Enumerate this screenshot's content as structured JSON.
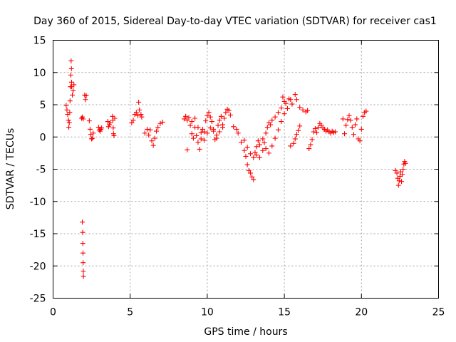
{
  "chart_data": {
    "type": "scatter",
    "title": "Day 360 of 2015, Sidereal Day-to-day VTEC variation (SDTVAR) for receiver cas1",
    "xlabel": "GPS time / hours",
    "ylabel": "SDTVAR / TECUs",
    "xlim": [
      0,
      25
    ],
    "ylim": [
      -25,
      15
    ],
    "xticks": [
      0,
      5,
      10,
      15,
      20,
      25
    ],
    "yticks": [
      -25,
      -20,
      -15,
      -10,
      -5,
      0,
      5,
      10,
      15
    ],
    "grid": true,
    "marker": "+",
    "color": "#ff0000",
    "segments": [
      {
        "t0": 0.85,
        "t1": 1.2,
        "pts": [
          [
            0.85,
            4.9
          ],
          [
            0.9,
            4.2
          ],
          [
            0.95,
            3.5
          ],
          [
            1.0,
            2.6
          ],
          [
            1.02,
            1.5
          ],
          [
            1.05,
            2.2
          ],
          [
            1.08,
            3.8
          ],
          [
            1.1,
            5.6
          ],
          [
            1.12,
            7.8
          ],
          [
            1.15,
            9.6
          ],
          [
            1.17,
            11.8
          ],
          [
            1.19,
            10.6
          ],
          [
            1.2,
            8.5
          ]
        ]
      },
      {
        "t0": 1.2,
        "t1": 1.35,
        "pts": [
          [
            1.2,
            7.8
          ],
          [
            1.25,
            6.5
          ],
          [
            1.3,
            7.2
          ],
          [
            1.35,
            8.1
          ]
        ]
      },
      {
        "t0": 1.85,
        "t1": 1.95,
        "pts": [
          [
            1.85,
            2.9
          ],
          [
            1.9,
            3.1
          ],
          [
            1.95,
            2.8
          ]
        ]
      },
      {
        "t0": 1.9,
        "t1": 2.0,
        "pts": [
          [
            1.9,
            -13.2
          ],
          [
            1.92,
            -14.8
          ],
          [
            1.93,
            -16.5
          ],
          [
            1.94,
            -18.0
          ],
          [
            1.95,
            -19.5
          ],
          [
            1.96,
            -20.8
          ],
          [
            1.97,
            -21.6
          ]
        ]
      },
      {
        "t0": 2.05,
        "t1": 2.15,
        "pts": [
          [
            2.05,
            6.5
          ],
          [
            2.1,
            5.8
          ],
          [
            2.15,
            6.4
          ]
        ]
      },
      {
        "t0": 2.35,
        "t1": 2.6,
        "pts": [
          [
            2.35,
            2.5
          ],
          [
            2.4,
            1.2
          ],
          [
            2.45,
            0.4
          ],
          [
            2.5,
            -0.3
          ],
          [
            2.55,
            -0.2
          ],
          [
            2.6,
            0.6
          ]
        ]
      },
      {
        "t0": 2.95,
        "t1": 3.15,
        "pts": [
          [
            2.95,
            1.5
          ],
          [
            3.0,
            1.1
          ],
          [
            3.05,
            0.9
          ],
          [
            3.1,
            1.2
          ],
          [
            3.15,
            1.4
          ]
        ]
      },
      {
        "t0": 3.55,
        "t1": 3.7,
        "pts": [
          [
            3.55,
            2.4
          ],
          [
            3.6,
            1.6
          ],
          [
            3.65,
            1.9
          ],
          [
            3.7,
            2.2
          ]
        ]
      },
      {
        "t0": 3.85,
        "t1": 4.0,
        "pts": [
          [
            3.85,
            3.2
          ],
          [
            3.88,
            2.6
          ],
          [
            3.9,
            1.4
          ],
          [
            3.92,
            0.5
          ],
          [
            3.95,
            0.2
          ],
          [
            4.0,
            2.9
          ]
        ]
      },
      {
        "t0": 5.1,
        "t1": 5.75,
        "pts": [
          [
            5.1,
            2.2
          ],
          [
            5.2,
            2.6
          ],
          [
            5.3,
            3.5
          ],
          [
            5.4,
            3.8
          ],
          [
            5.5,
            3.3
          ],
          [
            5.55,
            5.4
          ],
          [
            5.6,
            4.2
          ],
          [
            5.7,
            3.5
          ],
          [
            5.75,
            3.1
          ]
        ]
      },
      {
        "t0": 5.95,
        "t1": 7.1,
        "pts": [
          [
            5.95,
            0.6
          ],
          [
            6.1,
            1.2
          ],
          [
            6.2,
            0.3
          ],
          [
            6.3,
            1.1
          ],
          [
            6.4,
            -0.6
          ],
          [
            6.5,
            -1.3
          ],
          [
            6.6,
            -0.2
          ],
          [
            6.7,
            0.9
          ],
          [
            6.8,
            1.5
          ],
          [
            6.95,
            2.1
          ],
          [
            7.1,
            2.3
          ]
        ]
      },
      {
        "t0": 8.5,
        "t1": 8.8,
        "pts": [
          [
            8.5,
            2.8
          ],
          [
            8.6,
            3.2
          ],
          [
            8.7,
            2.6
          ],
          [
            8.8,
            3.0
          ]
        ]
      },
      {
        "t0": 8.7,
        "t1": 11.5,
        "pts": [
          [
            8.7,
            -2.0
          ],
          [
            8.9,
            1.8
          ],
          [
            9.0,
            0.5
          ],
          [
            9.1,
            -0.2
          ],
          [
            9.2,
            1.5
          ],
          [
            9.3,
            0.2
          ],
          [
            9.4,
            -0.8
          ],
          [
            9.5,
            -1.9
          ],
          [
            9.6,
            -0.3
          ],
          [
            9.7,
            1.2
          ],
          [
            9.8,
            0.8
          ],
          [
            9.9,
            2.5
          ],
          [
            10.0,
            3.3
          ],
          [
            10.1,
            3.8
          ],
          [
            10.2,
            3.1
          ],
          [
            10.3,
            2.4
          ],
          [
            10.4,
            1.2
          ],
          [
            10.5,
            -0.4
          ],
          [
            10.6,
            0.3
          ],
          [
            10.7,
            1.8
          ],
          [
            10.8,
            2.6
          ],
          [
            10.9,
            3.2
          ],
          [
            11.0,
            1.5
          ],
          [
            11.1,
            2.9
          ],
          [
            11.2,
            3.8
          ],
          [
            11.3,
            4.3
          ],
          [
            11.4,
            4.1
          ],
          [
            11.5,
            3.4
          ]
        ]
      },
      {
        "t0": 9.0,
        "t1": 11.0,
        "pts": [
          [
            9.0,
            2.4
          ],
          [
            9.2,
            2.9
          ],
          [
            9.4,
            1.5
          ],
          [
            9.6,
            0.7
          ],
          [
            9.8,
            -0.5
          ],
          [
            10.0,
            0.6
          ],
          [
            10.2,
            1.4
          ],
          [
            10.4,
            0.9
          ],
          [
            10.6,
            -0.2
          ],
          [
            10.8,
            0.8
          ],
          [
            11.0,
            1.9
          ]
        ]
      },
      {
        "t0": 11.7,
        "t1": 13.0,
        "pts": [
          [
            11.7,
            1.6
          ],
          [
            11.9,
            1.2
          ],
          [
            12.0,
            0.6
          ],
          [
            12.2,
            -0.8
          ],
          [
            12.4,
            -2.1
          ],
          [
            12.5,
            -3.0
          ],
          [
            12.6,
            -4.3
          ],
          [
            12.7,
            -5.2
          ],
          [
            12.8,
            -5.6
          ],
          [
            12.9,
            -6.2
          ],
          [
            13.0,
            -6.6
          ]
        ]
      },
      {
        "t0": 12.4,
        "t1": 13.3,
        "pts": [
          [
            12.4,
            -0.5
          ],
          [
            12.6,
            -1.6
          ],
          [
            12.8,
            -2.6
          ],
          [
            13.0,
            -3.2
          ],
          [
            13.1,
            -2.4
          ],
          [
            13.2,
            -1.5
          ],
          [
            13.3,
            -0.6
          ]
        ]
      },
      {
        "t0": 13.2,
        "t1": 15.0,
        "pts": [
          [
            13.2,
            -2.8
          ],
          [
            13.4,
            -3.2
          ],
          [
            13.6,
            -2.1
          ],
          [
            13.7,
            -0.9
          ],
          [
            13.8,
            0.6
          ],
          [
            13.9,
            1.5
          ],
          [
            14.0,
            2.2
          ],
          [
            14.1,
            1.9
          ],
          [
            14.2,
            2.6
          ],
          [
            14.4,
            3.1
          ],
          [
            14.6,
            3.8
          ],
          [
            14.8,
            4.5
          ],
          [
            14.9,
            6.2
          ],
          [
            15.0,
            5.5
          ]
        ]
      },
      {
        "t0": 13.4,
        "t1": 15.4,
        "pts": [
          [
            13.4,
            -1.2
          ],
          [
            13.6,
            -0.3
          ],
          [
            13.8,
            -1.8
          ],
          [
            14.0,
            -2.5
          ],
          [
            14.2,
            -1.4
          ],
          [
            14.4,
            -0.2
          ],
          [
            14.6,
            1.1
          ],
          [
            14.8,
            2.4
          ],
          [
            15.0,
            3.6
          ],
          [
            15.2,
            4.4
          ],
          [
            15.4,
            5.8
          ]
        ]
      },
      {
        "t0": 15.1,
        "t1": 16.5,
        "pts": [
          [
            15.1,
            5.2
          ],
          [
            15.3,
            5.9
          ],
          [
            15.5,
            5.1
          ],
          [
            15.7,
            6.6
          ],
          [
            15.8,
            5.8
          ],
          [
            16.0,
            4.6
          ],
          [
            16.2,
            4.2
          ],
          [
            16.4,
            3.9
          ],
          [
            16.5,
            4.1
          ]
        ]
      },
      {
        "t0": 15.4,
        "t1": 16.0,
        "pts": [
          [
            15.4,
            -1.4
          ],
          [
            15.6,
            -1.0
          ],
          [
            15.7,
            -0.3
          ],
          [
            15.8,
            0.4
          ],
          [
            15.9,
            1.0
          ],
          [
            16.0,
            1.7
          ]
        ]
      },
      {
        "t0": 16.6,
        "t1": 17.4,
        "pts": [
          [
            16.6,
            -1.8
          ],
          [
            16.7,
            -1.2
          ],
          [
            16.8,
            -0.4
          ],
          [
            16.9,
            0.8
          ],
          [
            17.0,
            1.3
          ],
          [
            17.1,
            0.7
          ],
          [
            17.2,
            1.5
          ],
          [
            17.3,
            2.1
          ],
          [
            17.4,
            1.8
          ]
        ]
      },
      {
        "t0": 17.5,
        "t1": 18.3,
        "pts": [
          [
            17.5,
            1.4
          ],
          [
            17.6,
            1.2
          ],
          [
            17.7,
            0.9
          ],
          [
            17.8,
            1.1
          ],
          [
            17.9,
            0.8
          ],
          [
            18.0,
            0.6
          ],
          [
            18.1,
            0.9
          ],
          [
            18.2,
            0.7
          ],
          [
            18.3,
            0.8
          ]
        ]
      },
      {
        "t0": 18.8,
        "t1": 20.3,
        "pts": [
          [
            18.8,
            2.8
          ],
          [
            18.9,
            0.5
          ],
          [
            19.0,
            1.8
          ],
          [
            19.1,
            2.7
          ],
          [
            19.2,
            3.3
          ],
          [
            19.3,
            2.6
          ],
          [
            19.4,
            1.5
          ],
          [
            19.5,
            0.4
          ],
          [
            19.6,
            1.9
          ],
          [
            19.7,
            2.8
          ],
          [
            19.8,
            -0.3
          ],
          [
            19.9,
            -0.6
          ],
          [
            20.0,
            1.2
          ],
          [
            20.1,
            3.2
          ],
          [
            20.2,
            3.8
          ],
          [
            20.3,
            4.0
          ]
        ]
      },
      {
        "t0": 22.2,
        "t1": 22.85,
        "pts": [
          [
            22.2,
            -5.2
          ],
          [
            22.3,
            -5.6
          ],
          [
            22.35,
            -6.4
          ],
          [
            22.4,
            -7.5
          ],
          [
            22.45,
            -6.8
          ],
          [
            22.5,
            -6.1
          ],
          [
            22.55,
            -5.4
          ],
          [
            22.6,
            -6.9
          ],
          [
            22.65,
            -5.8
          ],
          [
            22.7,
            -5.0
          ],
          [
            22.75,
            -4.2
          ],
          [
            22.8,
            -3.8
          ],
          [
            22.85,
            -4.1
          ]
        ]
      }
    ]
  }
}
